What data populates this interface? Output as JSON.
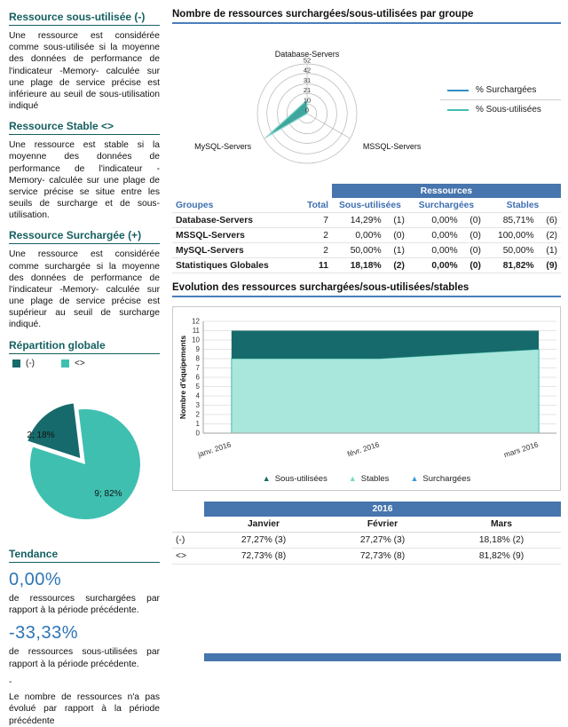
{
  "sidebar": {
    "sections": [
      {
        "title": "Ressource sous-utilisée (-)",
        "body": "Une ressource est considérée comme sous-utilisée si la moyenne des données de performance de l'indicateur -Memory- calculée sur une plage de service précise est inférieure au seuil de sous-utilisation indiqué"
      },
      {
        "title": "Ressource Stable <>",
        "body": "Une ressource est stable si la moyenne des données de performance de l'indicateur -Memory- calculée sur une plage de service précise se situe entre les seuils de surcharge et de sous-utilisation."
      },
      {
        "title": "Ressource Surchargée (+)",
        "body": "Une ressource est considérée comme surchargée si la moyenne des données de performance de l'indicateur -Memory- calculée sur une plage de service précise est supérieur au seuil de surcharge indiqué."
      }
    ],
    "repartition": {
      "title": "Répartition globale",
      "legend": [
        {
          "label": "(-)",
          "color": "#176a6b"
        },
        {
          "label": "<>",
          "color": "#3fbfb0"
        }
      ]
    },
    "tendance": {
      "title": "Tendance",
      "items": [
        {
          "value": "0,00%",
          "desc": "de ressources surchargées par rapport à la période précédente."
        },
        {
          "value": "-33,33%",
          "desc": "de ressources sous-utilisées par rapport à la période précédente."
        }
      ],
      "dash": "-",
      "note": "Le nombre de ressources n'a pas évolué par rapport à la période précédente"
    }
  },
  "main": {
    "radar_title": "Nombre de ressources surchargées/sous-utilisées par groupe",
    "evolution_title": "Evolution des ressources surchargées/sous-utilisées/stables",
    "table1": {
      "title": "Ressources",
      "columns": [
        "Groupes",
        "Total",
        "Sous-utilisées",
        "Surchargées",
        "Stables"
      ],
      "rows": [
        {
          "group": "Database-Servers",
          "total": "7",
          "stats": [
            [
              "14,29%",
              "(1)"
            ],
            [
              "0,00%",
              "(0)"
            ],
            [
              "85,71%",
              "(6)"
            ]
          ]
        },
        {
          "group": "MSSQL-Servers",
          "total": "2",
          "stats": [
            [
              "0,00%",
              "(0)"
            ],
            [
              "0,00%",
              "(0)"
            ],
            [
              "100,00%",
              "(2)"
            ]
          ]
        },
        {
          "group": "MySQL-Servers",
          "total": "2",
          "stats": [
            [
              "50,00%",
              "(1)"
            ],
            [
              "0,00%",
              "(0)"
            ],
            [
              "50,00%",
              "(1)"
            ]
          ]
        },
        {
          "group": "Statistiques Globales",
          "total": "11",
          "stats": [
            [
              "18,18%",
              "(2)"
            ],
            [
              "0,00%",
              "(0)"
            ],
            [
              "81,82%",
              "(9)"
            ]
          ],
          "total_row": true
        }
      ]
    },
    "table2": {
      "year": "2016",
      "months": [
        "Janvier",
        "Février",
        "Mars"
      ],
      "rows": [
        {
          "label": "(-)",
          "values": [
            "27,27% (3)",
            "27,27% (3)",
            "18,18% (2)"
          ]
        },
        {
          "label": "<>",
          "values": [
            "72,73% (8)",
            "72,73% (8)",
            "81,82% (9)"
          ]
        }
      ]
    }
  },
  "chart_data": [
    {
      "type": "pie",
      "title": "Répartition globale",
      "labels": [
        "(-)",
        "<>"
      ],
      "values": [
        2,
        9
      ],
      "percent": [
        18,
        82
      ],
      "colors": [
        "#176a6b",
        "#3fbfb0"
      ],
      "slice_labels": [
        "2; 18%",
        "9; 82%"
      ]
    },
    {
      "type": "radar",
      "title": "Nombre de ressources surchargées/sous-utilisées par groupe",
      "categories": [
        "Database-Servers",
        "MSSQL-Servers",
        "MySQL-Servers"
      ],
      "rings": [
        0,
        10,
        21,
        31,
        42,
        52
      ],
      "max": 52,
      "series": [
        {
          "name": "% Surchargées",
          "color": "#2e8fc6",
          "stroke": "#2e8fc6",
          "values": [
            0,
            0,
            0
          ]
        },
        {
          "name": "% Sous-utilisées",
          "color": "#2f9e96",
          "stroke": "#8ed8d0",
          "values": [
            14.29,
            0,
            50
          ]
        }
      ],
      "legend": [
        {
          "label": "% Surchargées",
          "color": "#2e8fc6"
        },
        {
          "label": "% Sous-utilisées",
          "color": "#3fbfb0"
        }
      ]
    },
    {
      "type": "area",
      "stacked": true,
      "title": "Evolution des ressources surchargées/sous-utilisées/stables",
      "ylabel": "Nombre d'équipements",
      "ylim": [
        0,
        12
      ],
      "x": [
        "janv. 2016",
        "févr. 2016",
        "mars 2016"
      ],
      "series": [
        {
          "name": "Sous-utilisées",
          "color": "#176a6b",
          "legend_color": "#176a6b",
          "values": [
            3,
            3,
            2
          ]
        },
        {
          "name": "Stables",
          "color": "#a9e6dc",
          "stroke": "#45bfae",
          "legend_color": "#7bd7c9",
          "values": [
            8,
            8,
            9
          ]
        },
        {
          "name": "Surchargées",
          "color": "#3a9ad9",
          "legend_color": "#3a9ad9",
          "values": [
            0,
            0,
            0
          ]
        }
      ]
    }
  ]
}
